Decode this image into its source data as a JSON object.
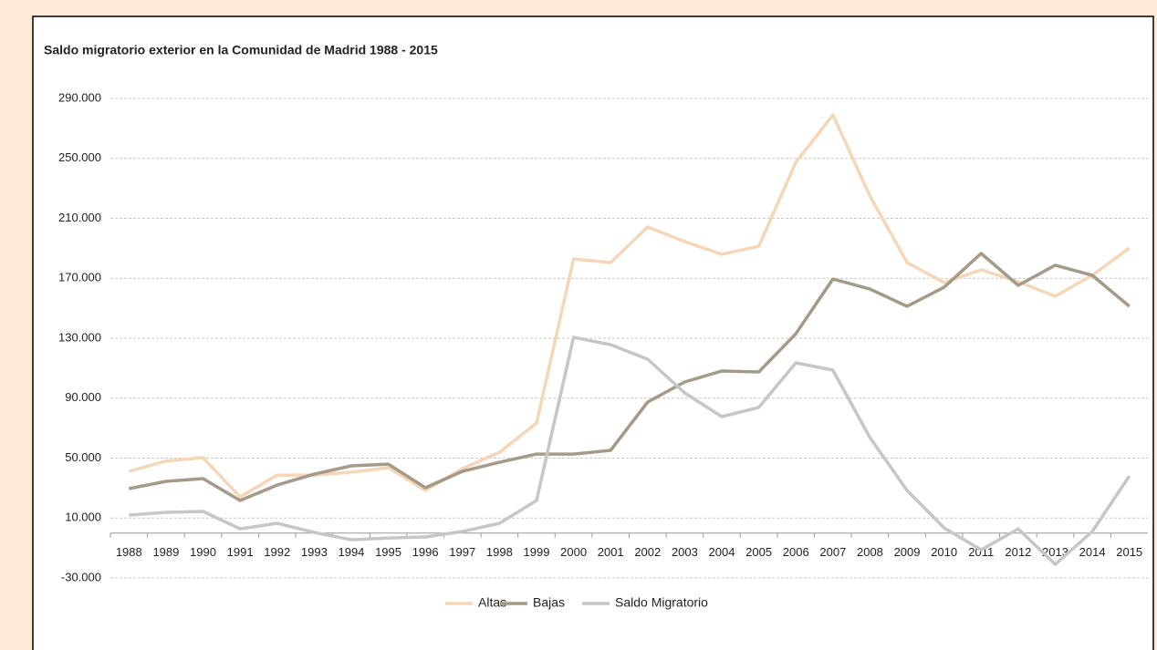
{
  "chart_data": {
    "type": "line",
    "title": "Saldo migratorio exterior en la Comunidad de Madrid 1988 - 2015",
    "categories": [
      "1988",
      "1989",
      "1990",
      "1991",
      "1992",
      "1993",
      "1994",
      "1995",
      "1996",
      "1997",
      "1998",
      "1999",
      "2000",
      "2001",
      "2002",
      "2003",
      "2004",
      "2005",
      "2006",
      "2007",
      "2008",
      "2009",
      "2010",
      "2011",
      "2012",
      "2013",
      "2014",
      "2015"
    ],
    "series": [
      {
        "name": "Altas",
        "color": "#f6d6b6",
        "values": [
          41200,
          48000,
          50300,
          24100,
          38700,
          38700,
          40600,
          43600,
          28400,
          43000,
          53900,
          73400,
          182900,
          180500,
          204200,
          194500,
          186000,
          191400,
          247400,
          279000,
          224900,
          180500,
          167100,
          175600,
          167700,
          158000,
          172000,
          190200
        ]
      },
      {
        "name": "Bajas",
        "color": "#a59a88",
        "values": [
          29600,
          34500,
          36300,
          21700,
          32000,
          39300,
          44800,
          46000,
          30200,
          41200,
          47200,
          52700,
          52700,
          55200,
          87400,
          100800,
          108100,
          107500,
          133000,
          169500,
          162800,
          151300,
          164000,
          186600,
          165300,
          178700,
          172000,
          151300
        ]
      },
      {
        "name": "Saldo Migratorio",
        "color": "#c6c6c6",
        "values": [
          12000,
          13800,
          14400,
          2800,
          6500,
          400,
          -4500,
          -3300,
          -2600,
          1000,
          6500,
          21700,
          130600,
          125700,
          116000,
          93500,
          77700,
          83800,
          113600,
          108700,
          63700,
          28400,
          3400,
          -11200,
          2800,
          -20900,
          1000,
          38100
        ]
      }
    ],
    "ylim": [
      -30000,
      290000
    ],
    "yticks": [
      {
        "value": -30000,
        "label": "-30.000"
      },
      {
        "value": 10000,
        "label": "10.000"
      },
      {
        "value": 50000,
        "label": "50.000"
      },
      {
        "value": 90000,
        "label": "90.000"
      },
      {
        "value": 130000,
        "label": "130.000"
      },
      {
        "value": 170000,
        "label": "170.000"
      },
      {
        "value": 210000,
        "label": "210.000"
      },
      {
        "value": 250000,
        "label": "250.000"
      },
      {
        "value": 290000,
        "label": "290.000"
      }
    ],
    "grid": true,
    "legend": "bottom"
  }
}
